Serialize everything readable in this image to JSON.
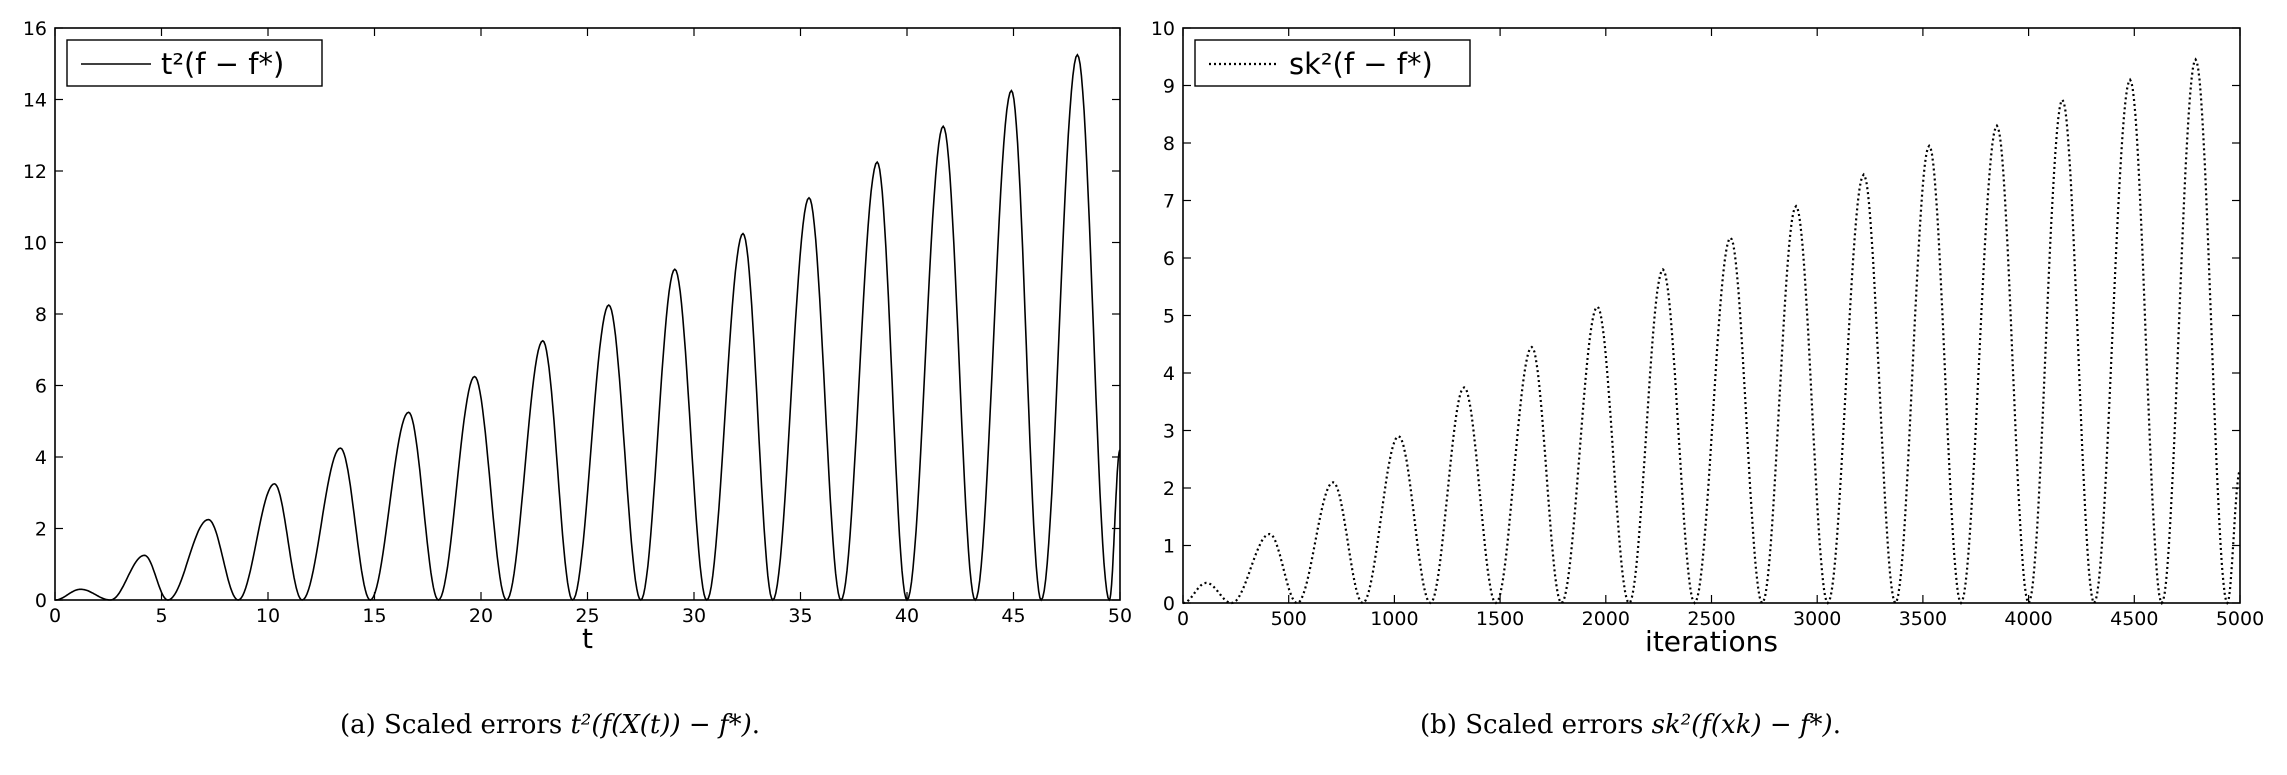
{
  "chart_data": [
    {
      "type": "line",
      "title": "",
      "xlabel": "t",
      "ylabel": "",
      "xlim": [
        0,
        50
      ],
      "ylim": [
        0,
        16
      ],
      "xticks": [
        0,
        5,
        10,
        15,
        20,
        25,
        30,
        35,
        40,
        45,
        50
      ],
      "yticks": [
        0,
        2,
        4,
        6,
        8,
        10,
        12,
        14,
        16
      ],
      "grid": false,
      "legend_position": "top-left",
      "series": [
        {
          "name": "t²(f − f*)",
          "style": "solid",
          "color": "#000000",
          "function": "peak envelope ≈ t/π, oscillation period ≈ π",
          "points": [
            [
              0,
              0
            ],
            [
              1.2,
              0.3
            ],
            [
              2.6,
              0
            ],
            [
              4.2,
              1.25
            ],
            [
              5.3,
              0
            ],
            [
              7.2,
              2.25
            ],
            [
              8.6,
              0
            ],
            [
              10.3,
              3.25
            ],
            [
              11.6,
              0
            ],
            [
              13.4,
              4.25
            ],
            [
              14.8,
              0
            ],
            [
              16.6,
              5.25
            ],
            [
              18.0,
              0
            ],
            [
              19.7,
              6.25
            ],
            [
              21.2,
              0
            ],
            [
              22.9,
              7.25
            ],
            [
              24.3,
              0
            ],
            [
              26.0,
              8.25
            ],
            [
              27.5,
              0
            ],
            [
              29.1,
              9.25
            ],
            [
              30.6,
              0
            ],
            [
              32.3,
              10.25
            ],
            [
              33.7,
              0
            ],
            [
              35.4,
              11.25
            ],
            [
              36.9,
              0
            ],
            [
              38.6,
              12.25
            ],
            [
              40.0,
              0
            ],
            [
              41.7,
              13.25
            ],
            [
              43.2,
              0
            ],
            [
              44.9,
              14.25
            ],
            [
              46.3,
              0
            ],
            [
              48.0,
              15.25
            ],
            [
              49.5,
              0
            ],
            [
              50,
              4.2
            ]
          ]
        }
      ]
    },
    {
      "type": "line",
      "title": "",
      "xlabel": "iterations",
      "ylabel": "",
      "xlim": [
        0,
        5000
      ],
      "ylim": [
        0,
        10
      ],
      "xticks": [
        0,
        500,
        1000,
        1500,
        2000,
        2500,
        3000,
        3500,
        4000,
        4500,
        5000
      ],
      "yticks": [
        0,
        1,
        2,
        3,
        4,
        5,
        6,
        7,
        8,
        9,
        10
      ],
      "grid": false,
      "legend_position": "top-left",
      "series": [
        {
          "name": "sk²(f − f*)",
          "style": "dotted",
          "color": "#000000",
          "points": [
            [
              0,
              0
            ],
            [
              110,
              0.35
            ],
            [
              230,
              0
            ],
            [
              410,
              1.2
            ],
            [
              540,
              0
            ],
            [
              710,
              2.1
            ],
            [
              850,
              0
            ],
            [
              1020,
              2.9
            ],
            [
              1170,
              0
            ],
            [
              1330,
              3.75
            ],
            [
              1480,
              0
            ],
            [
              1650,
              4.45
            ],
            [
              1790,
              0
            ],
            [
              1960,
              5.15
            ],
            [
              2110,
              0
            ],
            [
              2270,
              5.8
            ],
            [
              2420,
              0
            ],
            [
              2590,
              6.35
            ],
            [
              2740,
              0
            ],
            [
              2900,
              6.9
            ],
            [
              3050,
              0
            ],
            [
              3220,
              7.45
            ],
            [
              3370,
              0
            ],
            [
              3530,
              7.95
            ],
            [
              3680,
              0
            ],
            [
              3850,
              8.3
            ],
            [
              4000,
              0
            ],
            [
              4160,
              8.75
            ],
            [
              4310,
              0
            ],
            [
              4480,
              9.1
            ],
            [
              4630,
              0
            ],
            [
              4790,
              9.45
            ],
            [
              4940,
              0
            ],
            [
              5000,
              2.3
            ]
          ]
        }
      ]
    }
  ],
  "captions": {
    "a": {
      "prefix": "(a) Scaled errors ",
      "math": "t²(f(X(t)) − f*)",
      "suffix": "."
    },
    "b": {
      "prefix": "(b) Scaled errors ",
      "math": "sk²(f(xk) − f*)",
      "suffix": "."
    }
  }
}
